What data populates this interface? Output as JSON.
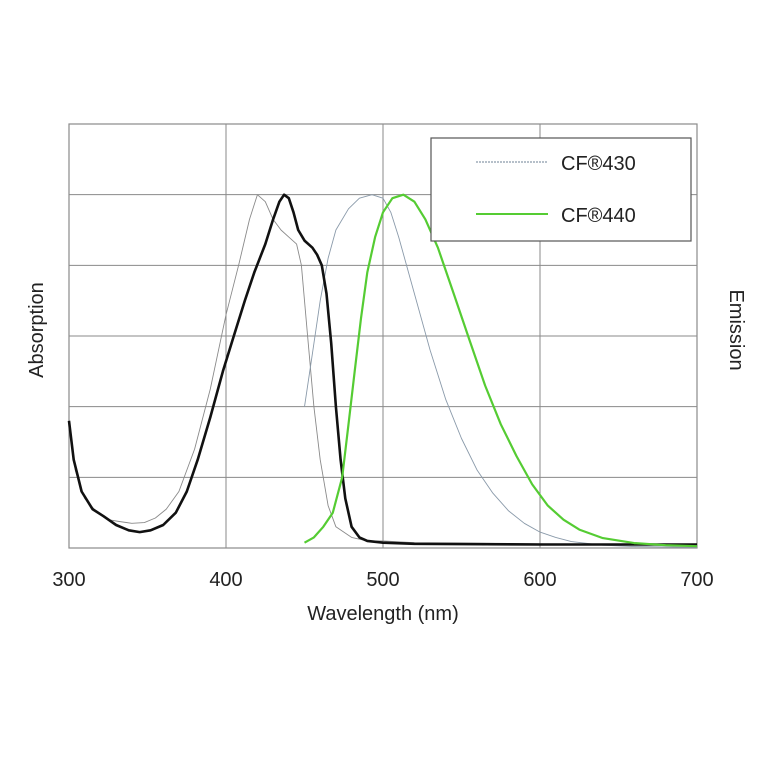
{
  "chart_data": {
    "type": "line",
    "xlabel": "Wavelength (nm)",
    "ylabel_left": "Absorption",
    "ylabel_right": "Emission",
    "xlim": [
      300,
      700
    ],
    "ylim": [
      0,
      1.2
    ],
    "x_ticks": [
      "300",
      "400",
      "500",
      "600",
      "700"
    ],
    "grid": true,
    "legend_position": "top-right",
    "series": [
      {
        "name": "CF®430",
        "legend_label": "CF®430",
        "kind": "absorption",
        "color": "#8a8a8a",
        "style": "thin",
        "points": [
          [
            300,
            0.35
          ],
          [
            304,
            0.22
          ],
          [
            310,
            0.14
          ],
          [
            318,
            0.1
          ],
          [
            325,
            0.08
          ],
          [
            332,
            0.075
          ],
          [
            340,
            0.07
          ],
          [
            348,
            0.072
          ],
          [
            355,
            0.085
          ],
          [
            362,
            0.11
          ],
          [
            370,
            0.16
          ],
          [
            380,
            0.28
          ],
          [
            390,
            0.45
          ],
          [
            400,
            0.66
          ],
          [
            408,
            0.8
          ],
          [
            415,
            0.93
          ],
          [
            420,
            1.0
          ],
          [
            425,
            0.98
          ],
          [
            430,
            0.93
          ],
          [
            435,
            0.9
          ],
          [
            440,
            0.88
          ],
          [
            445,
            0.86
          ],
          [
            448,
            0.8
          ],
          [
            452,
            0.6
          ],
          [
            456,
            0.4
          ],
          [
            460,
            0.25
          ],
          [
            465,
            0.12
          ],
          [
            470,
            0.06
          ],
          [
            480,
            0.03
          ],
          [
            490,
            0.02
          ],
          [
            500,
            0.02
          ],
          [
            520,
            0.015
          ],
          [
            600,
            0.012
          ],
          [
            700,
            0.01
          ]
        ]
      },
      {
        "name": "CF®430",
        "kind": "emission",
        "color": "#8a9aaa",
        "style": "thin",
        "points": [
          [
            450,
            0.4
          ],
          [
            455,
            0.55
          ],
          [
            460,
            0.7
          ],
          [
            465,
            0.82
          ],
          [
            470,
            0.9
          ],
          [
            478,
            0.96
          ],
          [
            485,
            0.99
          ],
          [
            493,
            1.0
          ],
          [
            500,
            0.99
          ],
          [
            505,
            0.95
          ],
          [
            510,
            0.88
          ],
          [
            520,
            0.72
          ],
          [
            530,
            0.56
          ],
          [
            540,
            0.42
          ],
          [
            550,
            0.31
          ],
          [
            560,
            0.22
          ],
          [
            570,
            0.155
          ],
          [
            580,
            0.105
          ],
          [
            590,
            0.07
          ],
          [
            600,
            0.045
          ],
          [
            610,
            0.03
          ],
          [
            620,
            0.018
          ],
          [
            640,
            0.008
          ],
          [
            660,
            0.004
          ],
          [
            700,
            0.002
          ]
        ]
      },
      {
        "name": "CF®440",
        "kind": "absorption",
        "color": "#111111",
        "style": "thick",
        "points": [
          [
            300,
            0.36
          ],
          [
            303,
            0.25
          ],
          [
            308,
            0.16
          ],
          [
            315,
            0.11
          ],
          [
            322,
            0.09
          ],
          [
            330,
            0.065
          ],
          [
            338,
            0.05
          ],
          [
            345,
            0.045
          ],
          [
            352,
            0.05
          ],
          [
            360,
            0.065
          ],
          [
            368,
            0.1
          ],
          [
            375,
            0.16
          ],
          [
            382,
            0.25
          ],
          [
            390,
            0.37
          ],
          [
            398,
            0.5
          ],
          [
            405,
            0.6
          ],
          [
            412,
            0.7
          ],
          [
            418,
            0.78
          ],
          [
            425,
            0.86
          ],
          [
            430,
            0.93
          ],
          [
            434,
            0.98
          ],
          [
            437,
            1.0
          ],
          [
            440,
            0.99
          ],
          [
            443,
            0.95
          ],
          [
            446,
            0.9
          ],
          [
            450,
            0.87
          ],
          [
            455,
            0.85
          ],
          [
            458,
            0.83
          ],
          [
            461,
            0.8
          ],
          [
            464,
            0.72
          ],
          [
            467,
            0.58
          ],
          [
            470,
            0.4
          ],
          [
            473,
            0.25
          ],
          [
            476,
            0.14
          ],
          [
            480,
            0.06
          ],
          [
            485,
            0.03
          ],
          [
            490,
            0.02
          ],
          [
            500,
            0.015
          ],
          [
            520,
            0.012
          ],
          [
            600,
            0.01
          ],
          [
            700,
            0.01
          ]
        ]
      },
      {
        "name": "CF®440",
        "legend_label": "CF®440",
        "kind": "emission",
        "color": "#55cc33",
        "style": "medium",
        "points": [
          [
            450,
            0.015
          ],
          [
            456,
            0.03
          ],
          [
            462,
            0.06
          ],
          [
            468,
            0.1
          ],
          [
            474,
            0.2
          ],
          [
            478,
            0.35
          ],
          [
            482,
            0.5
          ],
          [
            486,
            0.65
          ],
          [
            490,
            0.78
          ],
          [
            495,
            0.88
          ],
          [
            500,
            0.95
          ],
          [
            506,
            0.99
          ],
          [
            513,
            1.0
          ],
          [
            520,
            0.98
          ],
          [
            527,
            0.93
          ],
          [
            535,
            0.85
          ],
          [
            545,
            0.72
          ],
          [
            555,
            0.59
          ],
          [
            565,
            0.46
          ],
          [
            575,
            0.35
          ],
          [
            585,
            0.26
          ],
          [
            595,
            0.18
          ],
          [
            605,
            0.12
          ],
          [
            615,
            0.08
          ],
          [
            625,
            0.052
          ],
          [
            640,
            0.028
          ],
          [
            660,
            0.014
          ],
          [
            680,
            0.008
          ],
          [
            700,
            0.005
          ]
        ]
      }
    ]
  }
}
